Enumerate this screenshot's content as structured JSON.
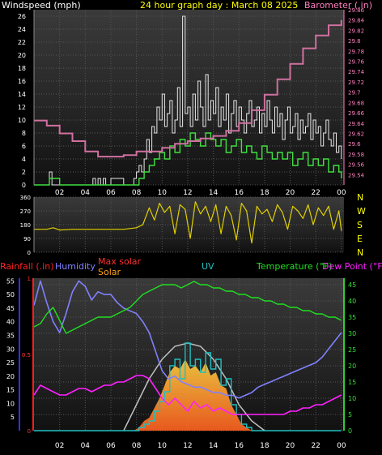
{
  "header": {
    "wind_title": "Windspeed (mph)",
    "graph_title": "24 hour graph day : March 08 2025",
    "baro_title": "Barometer (.in)"
  },
  "colors": {
    "bg": "#000000",
    "wind_gust": "#e8e8e8",
    "wind_avg": "#40e040",
    "barometer": "#d070a0",
    "direction": "#e0d000",
    "humidity": "#8080ff",
    "rainfall": "#ff2020",
    "temperature": "#20e020",
    "dewpoint": "#ff20ff",
    "uv": "#20c0c0",
    "solar": "#ff9020",
    "max_solar": "#c0c0c0",
    "left_axis": "#3030ff",
    "right_axis": "#30d030"
  },
  "chart_data": [
    {
      "type": "line",
      "name": "wind-barometer-panel",
      "title": "24 hour graph day : March 08 2025",
      "ylabel_left": "Windspeed (mph)",
      "ylabel_right": "Barometer (.in)",
      "ylim_left": [
        0,
        27
      ],
      "yticks_left": [
        0,
        2,
        4,
        6,
        8,
        10,
        12,
        14,
        16,
        18,
        20,
        22,
        24,
        26
      ],
      "ylim_right": [
        29.52,
        29.86
      ],
      "yticks_right": [
        "29.54",
        "29.56",
        "29.58",
        "29.6",
        "29.62",
        "29.64",
        "29.66",
        "29.68",
        "29.7",
        "29.72",
        "29.74",
        "29.76",
        "29.78",
        "29.8",
        "29.82",
        "29.84",
        "29.86"
      ],
      "xlim": [
        0,
        24.2
      ],
      "xticks": [
        "02",
        "04",
        "06",
        "08",
        "10",
        "12",
        "14",
        "16",
        "18",
        "20",
        "22",
        "00"
      ],
      "xtick_hours": [
        2,
        4,
        6,
        8,
        10,
        12,
        14,
        16,
        18,
        20,
        22,
        24
      ],
      "series": [
        {
          "role": "gust",
          "x": [
            0,
            1,
            1.2,
            1.4,
            2,
            3,
            4,
            4.6,
            4.8,
            5,
            5.2,
            5.4,
            5.6,
            6,
            7,
            7.8,
            8,
            8.2,
            8.4,
            8.6,
            8.8,
            9,
            9.2,
            9.4,
            9.6,
            9.8,
            10,
            10.2,
            10.4,
            10.6,
            10.8,
            11,
            11.2,
            11.4,
            11.6,
            11.8,
            12,
            12.2,
            12.4,
            12.6,
            12.8,
            13,
            13.2,
            13.4,
            13.6,
            13.8,
            14,
            14.2,
            14.4,
            14.6,
            14.8,
            15,
            15.2,
            15.4,
            15.6,
            15.8,
            16,
            16.2,
            16.4,
            16.6,
            16.8,
            17,
            17.2,
            17.4,
            17.6,
            17.8,
            18,
            18.2,
            18.4,
            18.6,
            18.8,
            19,
            19.2,
            19.4,
            19.6,
            19.8,
            20,
            20.2,
            20.4,
            20.6,
            20.8,
            21,
            21.2,
            21.4,
            21.6,
            21.8,
            22,
            22.2,
            22.4,
            22.6,
            22.8,
            23,
            23.2,
            23.4,
            23.6,
            23.8,
            24
          ],
          "values": [
            0,
            0,
            2,
            0,
            0,
            0,
            0,
            1,
            0,
            1,
            0,
            1,
            0,
            1,
            0,
            1,
            2,
            3,
            2,
            4,
            7,
            5,
            9,
            8,
            12,
            10,
            14,
            9,
            11,
            13,
            8,
            10,
            15,
            9,
            26,
            11,
            12,
            9,
            14,
            10,
            16,
            12,
            9,
            17,
            10,
            13,
            11,
            15,
            9,
            12,
            10,
            14,
            8,
            11,
            13,
            9,
            12,
            10,
            8,
            11,
            13,
            9,
            10,
            12,
            8,
            11,
            9,
            13,
            10,
            8,
            12,
            9,
            11,
            7,
            10,
            12,
            8,
            9,
            11,
            7,
            10,
            8,
            9,
            11,
            7,
            10,
            8,
            9,
            6,
            8,
            10,
            7,
            6,
            8,
            5,
            6,
            4
          ],
          "color": "#e8e8e8"
        },
        {
          "role": "average",
          "x": [
            0,
            1,
            1.2,
            2,
            4,
            6,
            7.8,
            8.2,
            8.6,
            9,
            9.4,
            9.8,
            10.2,
            10.6,
            11,
            11.4,
            11.8,
            12.2,
            12.6,
            13,
            13.4,
            13.8,
            14.2,
            14.6,
            15,
            15.4,
            15.8,
            16.2,
            16.6,
            17,
            17.4,
            17.8,
            18.2,
            18.6,
            19,
            19.4,
            19.8,
            20.2,
            20.6,
            21,
            21.4,
            21.8,
            22.2,
            22.6,
            23,
            23.4,
            23.8,
            24
          ],
          "values": [
            0,
            0,
            1,
            0,
            0,
            0,
            0,
            1,
            2,
            3,
            4,
            5,
            4,
            6,
            5,
            7,
            6,
            8,
            7,
            6,
            8,
            7,
            6,
            7,
            5,
            6,
            7,
            5,
            6,
            5,
            4,
            6,
            5,
            4,
            5,
            4,
            5,
            3,
            4,
            5,
            3,
            4,
            3,
            4,
            2,
            3,
            2,
            1
          ],
          "color": "#40e040"
        },
        {
          "role": "barometer",
          "x": [
            0,
            1,
            2,
            3,
            4,
            5,
            6,
            7,
            8,
            9,
            10,
            11,
            12,
            13,
            14,
            15,
            16,
            17,
            18,
            19,
            20,
            21,
            22,
            23,
            24
          ],
          "values": [
            29.645,
            29.635,
            29.62,
            29.605,
            29.585,
            29.575,
            29.575,
            29.578,
            29.585,
            29.585,
            29.592,
            29.6,
            29.605,
            29.61,
            29.615,
            29.625,
            29.64,
            29.665,
            29.695,
            29.725,
            29.755,
            29.785,
            29.81,
            29.83,
            29.84
          ],
          "color": "#d070a0"
        }
      ]
    },
    {
      "type": "line",
      "name": "wind-direction-panel",
      "ylim": [
        0,
        360
      ],
      "yticks": [
        0,
        90,
        180,
        270,
        360
      ],
      "compass": [
        "N",
        "W",
        "S",
        "E",
        "N"
      ],
      "xlim": [
        0,
        24.2
      ],
      "series": [
        {
          "role": "direction",
          "x": [
            0,
            1,
            1.5,
            2,
            3,
            4,
            5,
            6,
            7,
            8,
            8.5,
            9,
            9.4,
            9.8,
            10.2,
            10.6,
            11,
            11.4,
            11.8,
            12.2,
            12.6,
            13,
            13.4,
            13.8,
            14.2,
            14.6,
            15,
            15.4,
            15.8,
            16.2,
            16.6,
            17,
            17.4,
            17.8,
            18.2,
            18.6,
            19,
            19.4,
            19.8,
            20.2,
            20.6,
            21,
            21.4,
            21.8,
            22.2,
            22.6,
            23,
            23.4,
            23.8,
            24
          ],
          "values": [
            150,
            150,
            160,
            145,
            150,
            150,
            150,
            150,
            150,
            160,
            180,
            290,
            210,
            320,
            260,
            300,
            120,
            310,
            280,
            90,
            330,
            250,
            300,
            200,
            310,
            120,
            300,
            240,
            80,
            320,
            270,
            60,
            300,
            250,
            280,
            200,
            310,
            260,
            150,
            300,
            270,
            220,
            310,
            180,
            290,
            240,
            300,
            150,
            270,
            140
          ],
          "color": "#e0d000"
        }
      ]
    },
    {
      "type": "line",
      "name": "weather-panel",
      "legend": [
        "Rainfall (.in)",
        "Humidity",
        "Max solar",
        "Solar",
        "UV",
        "Temperature (°F)",
        "Dew Point (°F)"
      ],
      "ylim_humidity": [
        0,
        56
      ],
      "yticks_humidity": [
        5,
        10,
        15,
        20,
        25,
        30,
        35,
        40,
        45,
        50,
        55
      ],
      "rain_ticks": [
        "0",
        "0.5",
        "1"
      ],
      "ylim_temperature": [
        0,
        47
      ],
      "yticks_temperature": [
        0,
        5,
        10,
        15,
        20,
        25,
        30,
        35,
        40,
        45
      ],
      "xlim": [
        0,
        24.2
      ],
      "xticks": [
        "02",
        "04",
        "06",
        "08",
        "10",
        "12",
        "14",
        "16",
        "18",
        "20",
        "22",
        "00"
      ],
      "xtick_hours": [
        2,
        4,
        6,
        8,
        10,
        12,
        14,
        16,
        18,
        20,
        22,
        24
      ],
      "series": [
        {
          "role": "humidity",
          "x": [
            0,
            0.5,
            1,
            1.5,
            2,
            2.5,
            3,
            3.5,
            4,
            4.5,
            5,
            5.5,
            6,
            6.5,
            7,
            7.5,
            8,
            8.5,
            9,
            9.5,
            10,
            10.5,
            11,
            11.5,
            12,
            12.5,
            13,
            13.5,
            14,
            14.5,
            15,
            15.5,
            16,
            16.5,
            17,
            17.5,
            18,
            18.5,
            19,
            19.5,
            20,
            20.5,
            21,
            21.5,
            22,
            22.5,
            23,
            23.5,
            24
          ],
          "values": [
            46,
            55,
            47,
            40,
            36,
            43,
            51,
            55,
            53,
            48,
            51,
            50,
            50,
            47,
            45,
            44,
            43,
            40,
            36,
            29,
            22,
            19,
            20,
            18,
            17,
            16,
            16,
            15,
            14,
            14,
            13,
            13,
            12,
            13,
            14,
            16,
            17,
            18,
            19,
            20,
            21,
            22,
            23,
            24,
            25,
            27,
            30,
            33,
            36
          ],
          "color": "#8080ff"
        },
        {
          "role": "temperature",
          "x": [
            0,
            0.5,
            1,
            1.5,
            2,
            2.5,
            3,
            3.5,
            4,
            4.5,
            5,
            5.5,
            6,
            6.5,
            7,
            7.5,
            8,
            8.5,
            9,
            9.5,
            10,
            10.5,
            11,
            11.5,
            12,
            12.5,
            13,
            13.5,
            14,
            14.5,
            15,
            15.5,
            16,
            16.5,
            17,
            17.5,
            18,
            18.5,
            19,
            19.5,
            20,
            20.5,
            21,
            21.5,
            22,
            22.5,
            23,
            23.5,
            24
          ],
          "values": [
            32,
            33,
            36,
            38,
            34,
            30,
            31,
            32,
            33,
            34,
            35,
            35,
            35,
            36,
            37,
            38,
            40,
            42,
            43,
            44,
            45,
            45,
            45,
            44,
            45,
            46,
            45,
            45,
            44,
            44,
            43,
            43,
            42,
            42,
            41,
            41,
            40,
            40,
            39,
            39,
            38,
            38,
            37,
            37,
            36,
            36,
            35,
            35,
            34
          ],
          "color": "#20e020"
        },
        {
          "role": "dewpoint",
          "x": [
            0,
            0.5,
            1,
            1.5,
            2,
            2.5,
            3,
            3.5,
            4,
            4.5,
            5,
            5.5,
            6,
            6.5,
            7,
            7.5,
            8,
            8.5,
            9,
            9.5,
            10,
            10.5,
            11,
            11.5,
            12,
            12.5,
            13,
            13.5,
            14,
            14.5,
            15,
            15.5,
            16,
            16.5,
            17,
            17.5,
            18,
            18.5,
            19,
            19.5,
            20,
            20.5,
            21,
            21.5,
            22,
            22.5,
            23,
            23.5,
            24
          ],
          "values": [
            11,
            14,
            13,
            12,
            11,
            11,
            12,
            13,
            13,
            12,
            13,
            14,
            14,
            15,
            15,
            16,
            17,
            17,
            16,
            13,
            10,
            8,
            10,
            8,
            6,
            9,
            7,
            8,
            6,
            7,
            6,
            5,
            5,
            5,
            5,
            5,
            5,
            5,
            5,
            5,
            6,
            6,
            7,
            7,
            8,
            8,
            9,
            10,
            11
          ],
          "color": "#ff20ff"
        },
        {
          "role": "uv",
          "x": [
            0,
            7.8,
            8.2,
            8.6,
            9,
            9.4,
            9.8,
            10.2,
            10.6,
            11,
            11.4,
            11.8,
            12.2,
            12.6,
            13,
            13.4,
            13.8,
            14.2,
            14.6,
            15,
            15.4,
            15.8,
            16.2,
            16.6,
            17,
            24
          ],
          "values": [
            0,
            0,
            1,
            2,
            3,
            6,
            9,
            12,
            20,
            22,
            16,
            27,
            20,
            22,
            18,
            24,
            19,
            22,
            14,
            16,
            8,
            5,
            2,
            1,
            0,
            0
          ],
          "color": "#20c0c0"
        },
        {
          "role": "solar",
          "x": [
            0,
            7.8,
            8.2,
            8.6,
            9,
            9.4,
            9.8,
            10.2,
            10.6,
            11,
            11.4,
            11.8,
            12.2,
            12.6,
            13,
            13.4,
            13.8,
            14.2,
            14.6,
            15,
            15.4,
            15.8,
            16.2,
            16.6,
            17,
            24
          ],
          "values": [
            0,
            0,
            1,
            3,
            4,
            7,
            10,
            14,
            18,
            20,
            19,
            22,
            19,
            20,
            18,
            21,
            17,
            18,
            14,
            13,
            8,
            5,
            2,
            1,
            0,
            0
          ],
          "color": "#ff9020"
        },
        {
          "role": "max_solar",
          "x": [
            7,
            8,
            9,
            10,
            11,
            12,
            13,
            14,
            15,
            16,
            17,
            18
          ],
          "values": [
            0,
            8,
            16,
            22,
            26,
            27,
            26,
            22,
            16,
            8,
            3,
            0
          ],
          "color": "#c0c0c0"
        }
      ]
    }
  ]
}
